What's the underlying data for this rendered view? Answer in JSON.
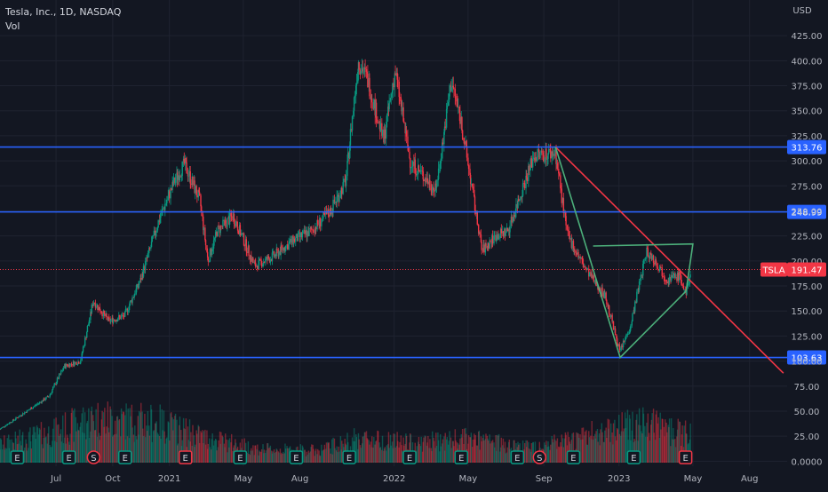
{
  "header": {
    "title": "Tesla, Inc., 1D, NASDAQ",
    "volume_label": "Vol"
  },
  "chart_data": {
    "type": "candlestick",
    "symbol": "TSLA",
    "currency_label": "USD",
    "ylim": [
      -5,
      450
    ],
    "y_ticks": [
      "425.00",
      "400.00",
      "375.00",
      "350.00",
      "325.00",
      "300.00",
      "275.00",
      "250.00",
      "225.00",
      "200.00",
      "175.00",
      "150.00",
      "125.00",
      "100.00",
      "75.00",
      "50.00",
      "25.00",
      "0.0000"
    ],
    "x_ticks": [
      "Jul",
      "Oct",
      "2021",
      "May",
      "Aug",
      "2022",
      "May",
      "Sep",
      "2023",
      "May",
      "Aug"
    ],
    "x_range": [
      "2020-04-01",
      "2023-10-01"
    ],
    "x_tick_dates": [
      "2020-07-01",
      "2020-10-01",
      "2021-01-01",
      "2021-05-01",
      "2021-08-01",
      "2022-01-01",
      "2022-05-01",
      "2022-09-01",
      "2023-01-01",
      "2023-05-01",
      "2023-08-01"
    ],
    "last_price": {
      "symbol": "TSLA",
      "value": 191.47,
      "label": "191.47"
    },
    "horizontal_levels": [
      {
        "value": 313.76,
        "label": "313.76"
      },
      {
        "value": 248.99,
        "label": "248.99"
      },
      {
        "value": 103.63,
        "label": "103.63"
      }
    ],
    "trend_line": {
      "from": [
        "2022-09-20",
        313.76
      ],
      "to": [
        "2023-09-25",
        88
      ]
    },
    "triangle_pattern": [
      [
        "2022-09-20",
        313.76
      ],
      [
        "2023-01-03",
        103.63
      ],
      [
        "2023-04-20",
        170
      ],
      [
        "2023-05-01",
        217
      ],
      [
        "2022-11-20",
        215
      ]
    ],
    "price_path": [
      [
        "2020-04-01",
        32
      ],
      [
        "2020-05-15",
        50
      ],
      [
        "2020-06-20",
        65
      ],
      [
        "2020-07-15",
        95
      ],
      [
        "2020-08-10",
        100
      ],
      [
        "2020-08-31",
        160
      ],
      [
        "2020-09-25",
        140
      ],
      [
        "2020-10-20",
        145
      ],
      [
        "2020-11-15",
        180
      ],
      [
        "2020-12-15",
        240
      ],
      [
        "2021-01-10",
        280
      ],
      [
        "2021-01-26",
        297
      ],
      [
        "2021-02-20",
        260
      ],
      [
        "2021-03-05",
        200
      ],
      [
        "2021-03-20",
        230
      ],
      [
        "2021-04-15",
        245
      ],
      [
        "2021-05-20",
        195
      ],
      [
        "2021-06-20",
        205
      ],
      [
        "2021-07-20",
        220
      ],
      [
        "2021-08-20",
        230
      ],
      [
        "2021-09-20",
        250
      ],
      [
        "2021-10-15",
        280
      ],
      [
        "2021-10-25",
        340
      ],
      [
        "2021-11-04",
        400
      ],
      [
        "2021-11-20",
        380
      ],
      [
        "2021-12-15",
        320
      ],
      [
        "2022-01-03",
        390
      ],
      [
        "2022-01-27",
        300
      ],
      [
        "2022-02-25",
        280
      ],
      [
        "2022-03-10",
        270
      ],
      [
        "2022-04-04",
        380
      ],
      [
        "2022-04-20",
        340
      ],
      [
        "2022-05-24",
        210
      ],
      [
        "2022-06-15",
        225
      ],
      [
        "2022-07-05",
        230
      ],
      [
        "2022-08-16",
        305
      ],
      [
        "2022-09-20",
        308
      ],
      [
        "2022-10-10",
        225
      ],
      [
        "2022-11-10",
        190
      ],
      [
        "2022-12-10",
        165
      ],
      [
        "2023-01-03",
        110
      ],
      [
        "2023-01-20",
        135
      ],
      [
        "2023-02-15",
        210
      ],
      [
        "2023-03-01",
        200
      ],
      [
        "2023-03-20",
        182
      ],
      [
        "2023-04-10",
        185
      ],
      [
        "2023-04-20",
        165
      ],
      [
        "2023-04-28",
        191.47
      ]
    ],
    "volume_path": [
      [
        "2020-04-01",
        20
      ],
      [
        "2020-07-01",
        35
      ],
      [
        "2020-08-31",
        50
      ],
      [
        "2020-12-15",
        45
      ],
      [
        "2021-03-01",
        28
      ],
      [
        "2021-06-01",
        15
      ],
      [
        "2021-09-01",
        14
      ],
      [
        "2021-11-05",
        28
      ],
      [
        "2022-02-01",
        22
      ],
      [
        "2022-05-01",
        27
      ],
      [
        "2022-08-01",
        18
      ],
      [
        "2022-10-15",
        24
      ],
      [
        "2022-12-15",
        38
      ],
      [
        "2023-01-15",
        45
      ],
      [
        "2023-03-15",
        40
      ],
      [
        "2023-04-28",
        30
      ]
    ],
    "events": [
      {
        "date": "2020-04-29",
        "letter": "E",
        "color": "#089981"
      },
      {
        "date": "2020-07-22",
        "letter": "E",
        "color": "#089981"
      },
      {
        "date": "2020-08-31",
        "letter": "S",
        "color": "#f23645"
      },
      {
        "date": "2020-10-21",
        "letter": "E",
        "color": "#089981"
      },
      {
        "date": "2021-01-27",
        "letter": "E",
        "color": "#f23645"
      },
      {
        "date": "2021-04-26",
        "letter": "E",
        "color": "#089981"
      },
      {
        "date": "2021-07-26",
        "letter": "E",
        "color": "#089981"
      },
      {
        "date": "2021-10-20",
        "letter": "E",
        "color": "#089981"
      },
      {
        "date": "2022-01-26",
        "letter": "E",
        "color": "#089981"
      },
      {
        "date": "2022-04-20",
        "letter": "E",
        "color": "#089981"
      },
      {
        "date": "2022-07-20",
        "letter": "E",
        "color": "#089981"
      },
      {
        "date": "2022-08-25",
        "letter": "S",
        "color": "#f23645"
      },
      {
        "date": "2022-10-19",
        "letter": "E",
        "color": "#089981"
      },
      {
        "date": "2023-01-25",
        "letter": "E",
        "color": "#089981"
      },
      {
        "date": "2023-04-19",
        "letter": "E",
        "color": "#f23645"
      }
    ],
    "colors": {
      "background": "#131722",
      "grid": "#1f2330",
      "up": "#089981",
      "down": "#f23645",
      "level_line": "#2962ff",
      "trend_line": "#f23645",
      "triangle": "#4caf7a",
      "price_label": "#f23645"
    }
  }
}
